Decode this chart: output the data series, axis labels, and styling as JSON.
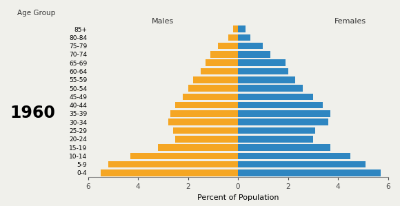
{
  "age_groups": [
    "0-4",
    "5-9",
    "10-14",
    "15-19",
    "20-24",
    "25-29",
    "30-34",
    "35-39",
    "40-44",
    "45-49",
    "50-54",
    "55-59",
    "60-64",
    "65-69",
    "70-74",
    "75-79",
    "80-84",
    "85+"
  ],
  "males": [
    5.5,
    5.2,
    4.3,
    3.2,
    2.5,
    2.6,
    2.8,
    2.7,
    2.5,
    2.2,
    2.0,
    1.8,
    1.5,
    1.3,
    1.1,
    0.8,
    0.4,
    0.2
  ],
  "females": [
    5.7,
    5.1,
    4.5,
    3.7,
    3.0,
    3.1,
    3.6,
    3.7,
    3.4,
    3.0,
    2.6,
    2.3,
    2.0,
    1.9,
    1.3,
    1.0,
    0.5,
    0.3
  ],
  "male_color": "#F5A623",
  "female_color": "#2E86C1",
  "year_label": "1960",
  "title_age": "Age Group",
  "label_males": "Males",
  "label_females": "Females",
  "xlabel": "Percent of Population",
  "xlim": 6.0,
  "background_color": "#f0f0eb"
}
